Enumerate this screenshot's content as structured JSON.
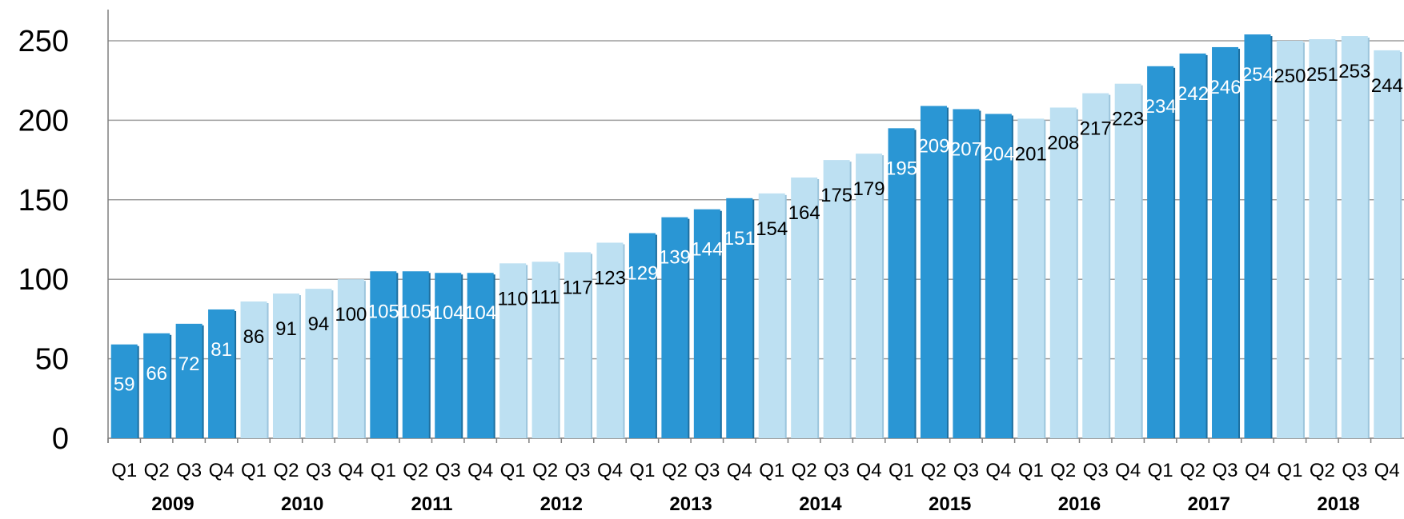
{
  "colors": {
    "dark": "#2a96d4",
    "light": "#bde0f2",
    "label_on_dark": "#ffffff",
    "label_on_light": "#000000",
    "grid": "#9e9e9e"
  },
  "chart_data": {
    "type": "bar",
    "title": "",
    "xlabel": "",
    "ylabel": "",
    "ylim": [
      0,
      270
    ],
    "y_ticks": [
      "0",
      "50",
      "100",
      "150",
      "200",
      "250"
    ],
    "grid": true,
    "legend": "none",
    "years": [
      "2009",
      "2010",
      "2011",
      "2012",
      "2013",
      "2014",
      "2015",
      "2016",
      "2017",
      "2018"
    ],
    "quarters": [
      "Q1",
      "Q2",
      "Q3",
      "Q4"
    ],
    "values": [
      59,
      66,
      72,
      81,
      86,
      91,
      94,
      100,
      105,
      105,
      104,
      104,
      110,
      111,
      117,
      123,
      129,
      139,
      144,
      151,
      154,
      164,
      175,
      179,
      195,
      209,
      207,
      204,
      201,
      208,
      217,
      223,
      234,
      242,
      246,
      254,
      250,
      251,
      253,
      244
    ],
    "labels": [
      "59",
      "66",
      "72",
      "81",
      "86",
      "91",
      "94",
      "100",
      "105",
      "105",
      "104",
      "104",
      "110",
      "111",
      "117",
      "123",
      "129",
      "139",
      "144",
      "151",
      "154",
      "164",
      "175",
      "179",
      "195",
      "209",
      "207",
      "204",
      "201",
      "208",
      "217",
      "223",
      "234",
      "242",
      "246",
      "254",
      "250",
      "251",
      "253",
      "244"
    ],
    "year_shading": [
      "dark",
      "light",
      "dark",
      "light",
      "dark",
      "light",
      "dark",
      "light",
      "dark",
      "light"
    ]
  }
}
